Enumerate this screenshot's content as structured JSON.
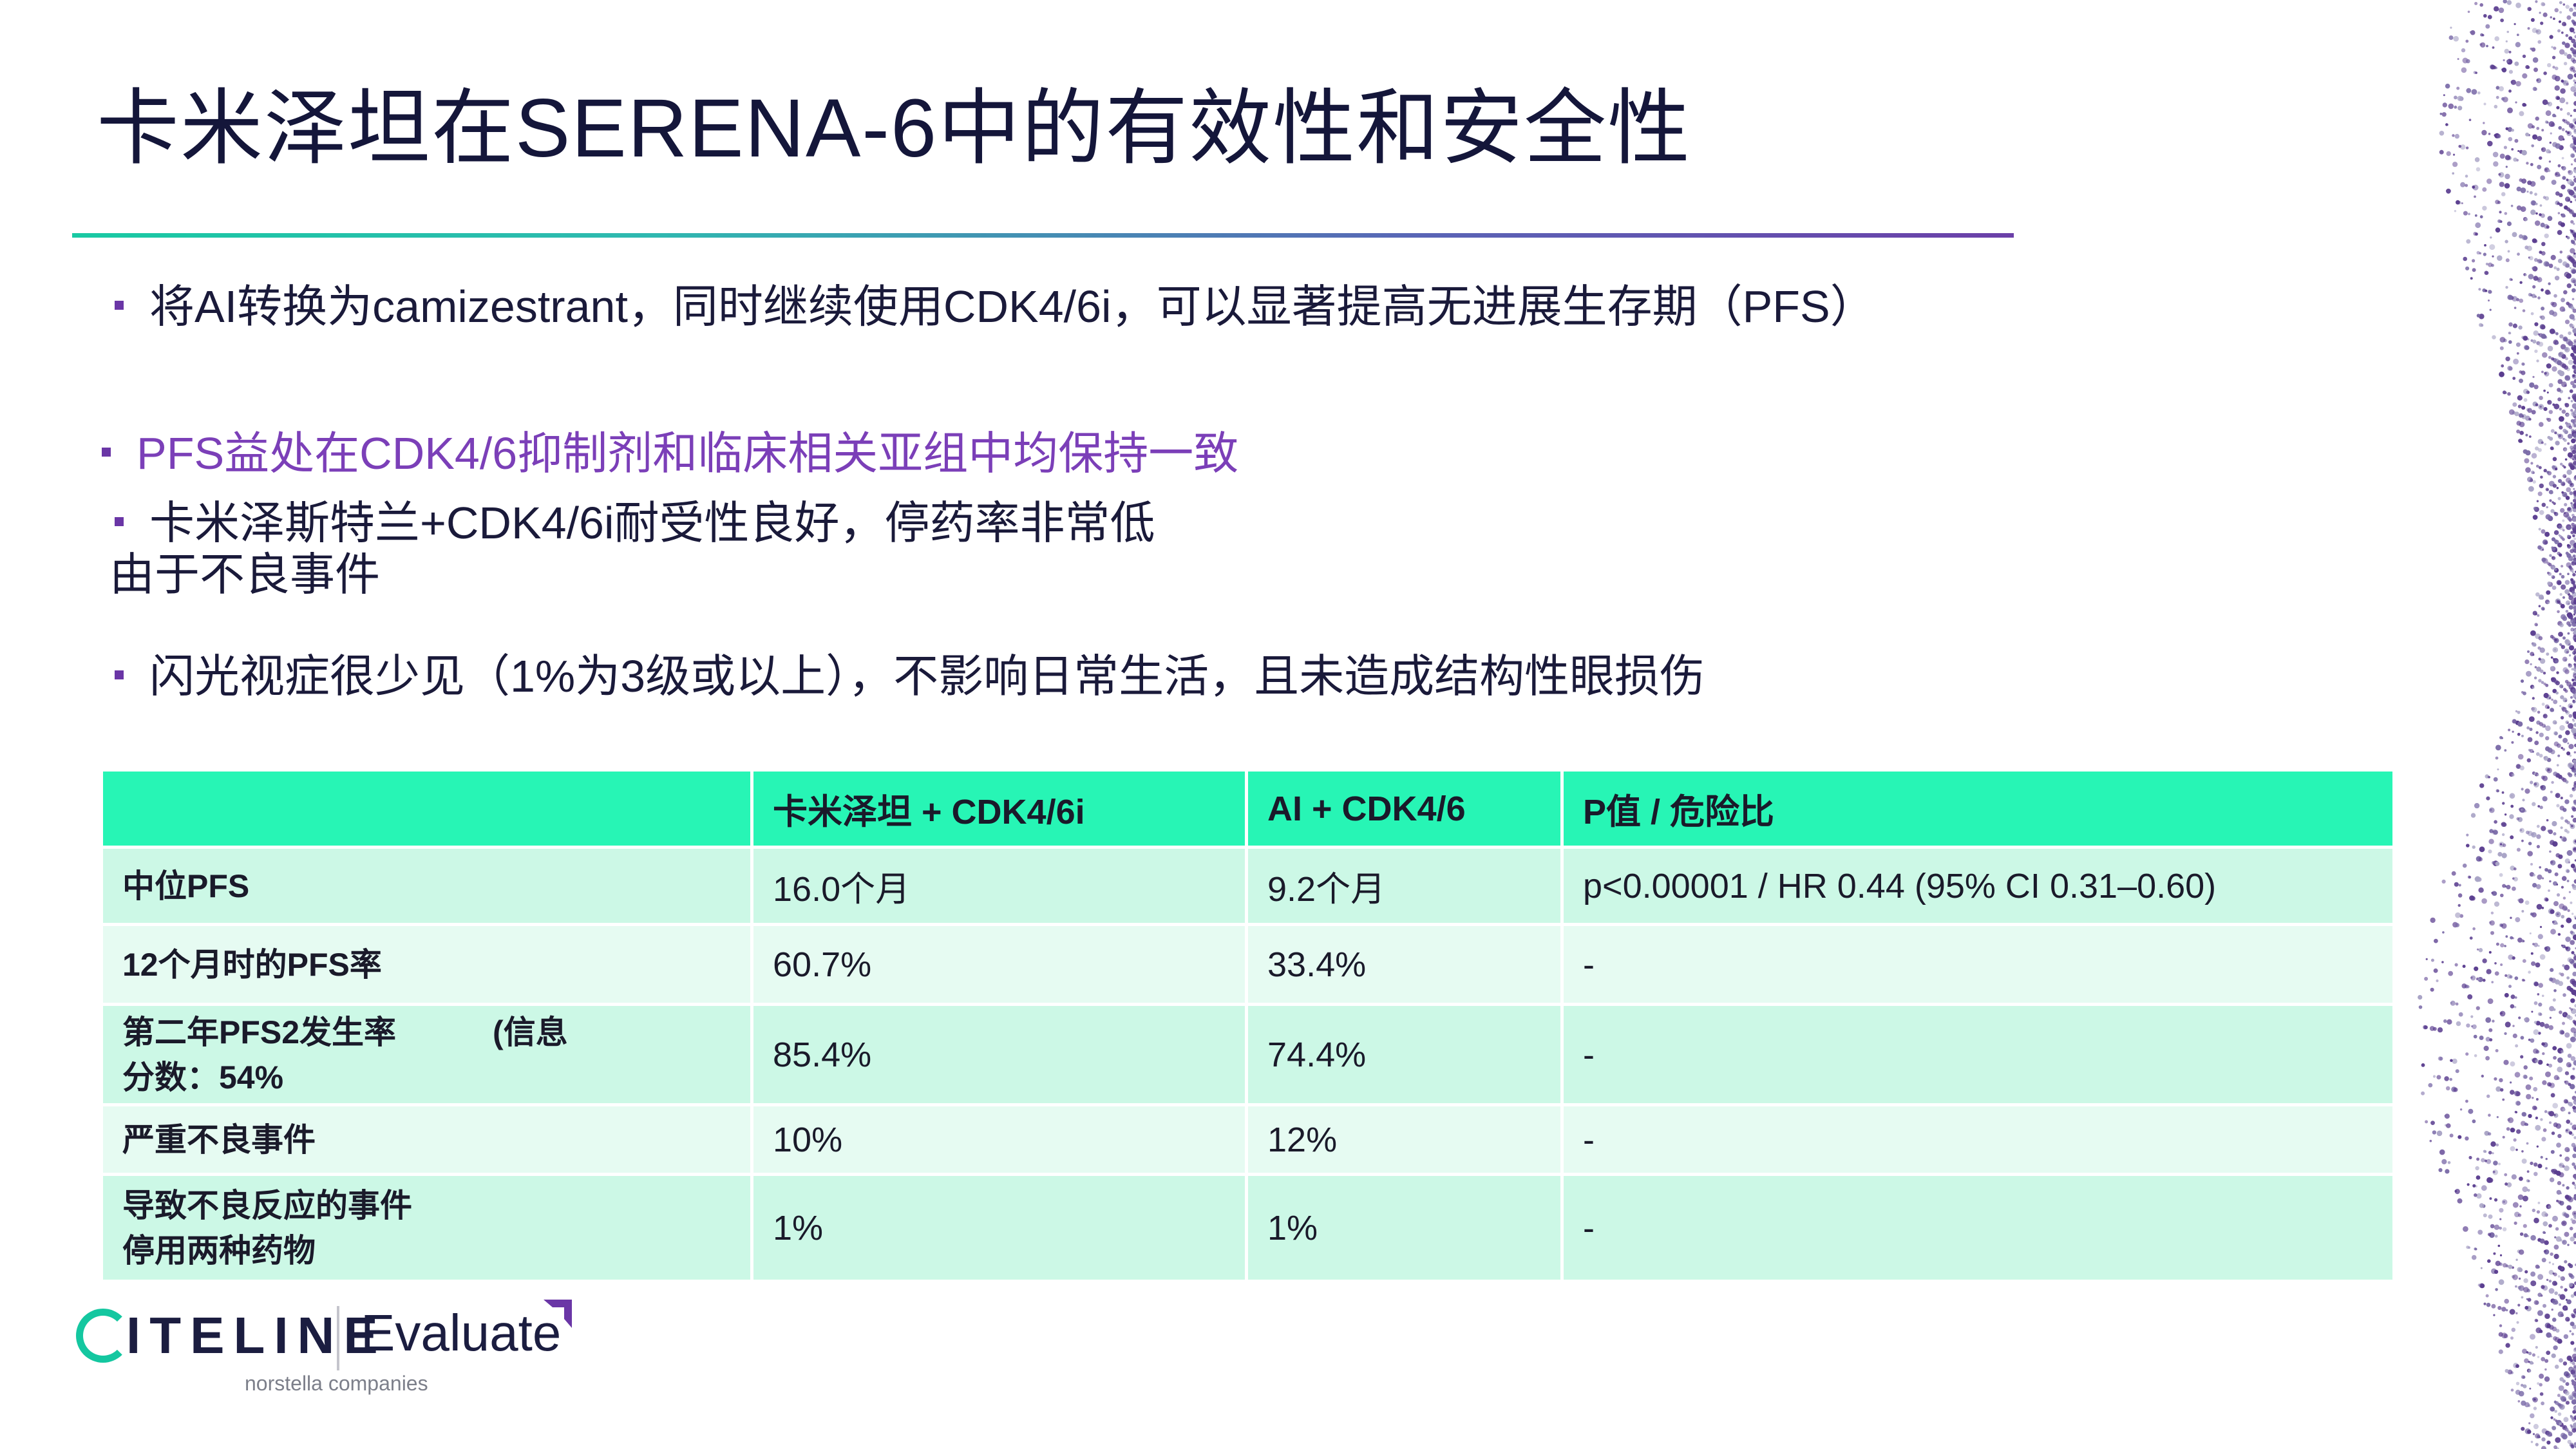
{
  "title": "卡米泽坦在SERENA-6中的有效性和安全性",
  "bullets": {
    "b1": "将AI转换为camizestrant，同时继续使用CDK4/6i，可以显著提高无进展生存期（PFS）",
    "b2": "PFS益处在CDK4/6抑制剂和临床相关亚组中均保持一致",
    "b3_line1": "卡米泽斯特兰+CDK4/6i耐受性良好，停药率非常低",
    "b3_line2": "由于不良事件",
    "b4": "闪光视症很少见（1%为3级或以上），不影响日常生活，且未造成结构性眼损伤"
  },
  "table": {
    "headers": [
      "",
      "卡米泽坦 + CDK4/6i",
      "AI + CDK4/6",
      "P值 / 危险比"
    ],
    "rows": [
      {
        "label_a": "中位PFS",
        "label_b": "",
        "c1": "16.0个月",
        "c2": "9.2个月",
        "c3": "p<0.00001 / HR 0.44 (95% CI 0.31–0.60)"
      },
      {
        "label_a": "12个月时的PFS率",
        "label_b": "",
        "c1": "60.7%",
        "c2": "33.4%",
        "c3": "-"
      },
      {
        "label_a": "第二年PFS2发生率　　　(信息",
        "label_b": "分数：54%",
        "c1": "85.4%",
        "c2": "74.4%",
        "c3": "-"
      },
      {
        "label_a": "严重不良事件",
        "label_b": "",
        "c1": "10%",
        "c2": "12%",
        "c3": "-"
      },
      {
        "label_a": "导致不良反应的事件",
        "label_b": "停用两种药物",
        "c1": "1%",
        "c2": "1%",
        "c3": "-"
      }
    ]
  },
  "logo": {
    "citeline": "ITELINE",
    "evaluate": "Evaluate",
    "sub": "norstella companies"
  },
  "colors": {
    "accent_teal": "#27f5b5",
    "accent_purple": "#6a36a6",
    "title_navy": "#14163a"
  }
}
